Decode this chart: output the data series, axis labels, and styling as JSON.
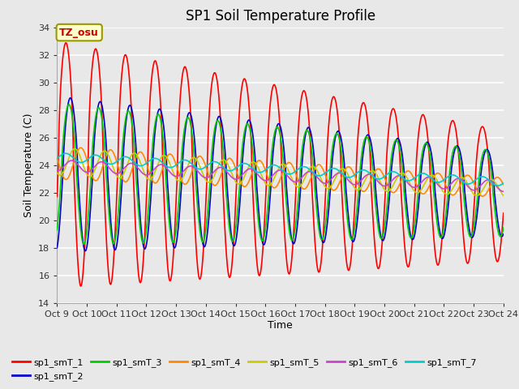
{
  "title": "SP1 Soil Temperature Profile",
  "xlabel": "Time",
  "ylabel": "Soil Temperature (C)",
  "ylim": [
    14,
    34
  ],
  "yticks": [
    14,
    16,
    18,
    20,
    22,
    24,
    26,
    28,
    30,
    32,
    34
  ],
  "x_start": 9,
  "x_end": 24,
  "num_points": 1500,
  "background_color": "#e8e8e8",
  "plot_bg_color": "#e8e8e8",
  "grid_color": "#ffffff",
  "annotation_text": "TZ_osu",
  "annotation_bg": "#ffffcc",
  "annotation_border": "#999900",
  "annotation_text_color": "#cc0000",
  "series_colors": {
    "sp1_smT_1": "#ff0000",
    "sp1_smT_2": "#0000cc",
    "sp1_smT_3": "#00cc00",
    "sp1_smT_4": "#ff8800",
    "sp1_smT_5": "#cccc00",
    "sp1_smT_6": "#cc44cc",
    "sp1_smT_7": "#00cccc"
  },
  "x_tick_labels": [
    "Oct 9",
    "Oct 10",
    "Oct 11",
    "Oct 12",
    "Oct 13",
    "Oct 14",
    "Oct 15",
    "Oct 16",
    "Oct 17",
    "Oct 18",
    "Oct 19",
    "Oct 20",
    "Oct 21",
    "Oct 22",
    "Oct 23",
    "Oct 24"
  ],
  "x_tick_positions": [
    9,
    10,
    11,
    12,
    13,
    14,
    15,
    16,
    17,
    18,
    19,
    20,
    21,
    22,
    23,
    24
  ]
}
